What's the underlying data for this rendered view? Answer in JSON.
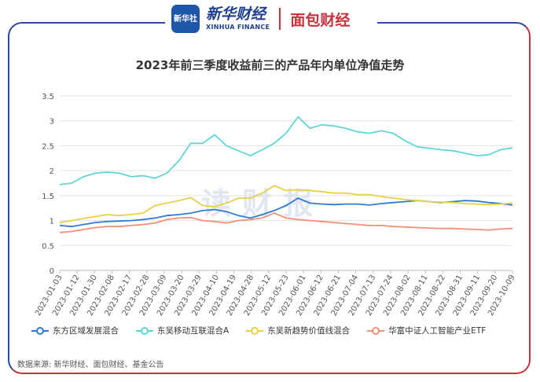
{
  "header": {
    "badge_text": "新华社",
    "brand_cn": "新华财经",
    "brand_en": "XINHUA FINANCE",
    "partner": "面包财经"
  },
  "watermark": "读财报",
  "chart_data": {
    "type": "line",
    "title": "2023年前三季度收益前三的产品年内单位净值走势",
    "xlabel": "",
    "ylabel": "",
    "ylim": [
      0,
      3.5
    ],
    "yticks": [
      "0",
      "0.5",
      "1",
      "1.5",
      "2",
      "2.5",
      "3",
      "3.5"
    ],
    "x_ticks": [
      "2023-01-03",
      "2023-01-12",
      "2023-01-30",
      "2023-02-08",
      "2023-02-17",
      "2023-02-28",
      "2023-03-09",
      "2023-03-20",
      "2023-03-29",
      "2023-04-10",
      "2023-04-19",
      "2023-04-28",
      "2023-05-12",
      "2023-05-23",
      "2023-06-01",
      "2023-06-12",
      "2023-06-21",
      "2023-07-04",
      "2023-07-13",
      "2023-07-24",
      "2023-08-02",
      "2023-08-11",
      "2023-08-22",
      "2023-08-31",
      "2023-09-11",
      "2023-09-20",
      "2023-10-09"
    ],
    "grid": true,
    "legend_position": "bottom",
    "series": [
      {
        "name": "东方区域发展混合",
        "color": "#2f7bd0",
        "values": [
          0.9,
          0.88,
          0.92,
          0.96,
          0.98,
          0.99,
          1.0,
          1.02,
          1.05,
          1.1,
          1.12,
          1.15,
          1.2,
          1.22,
          1.18,
          1.1,
          1.05,
          1.12,
          1.2,
          1.3,
          1.45,
          1.35,
          1.33,
          1.32,
          1.33,
          1.33,
          1.31,
          1.34,
          1.36,
          1.38,
          1.4,
          1.38,
          1.36,
          1.38,
          1.4,
          1.39,
          1.36,
          1.34,
          1.31
        ]
      },
      {
        "name": "东吴移动互联混合A",
        "color": "#5fd6d6",
        "values": [
          1.72,
          1.75,
          1.88,
          1.95,
          1.97,
          1.95,
          1.88,
          1.9,
          1.85,
          1.95,
          2.2,
          2.55,
          2.55,
          2.72,
          2.5,
          2.4,
          2.3,
          2.42,
          2.55,
          2.75,
          3.08,
          2.85,
          2.92,
          2.9,
          2.85,
          2.78,
          2.75,
          2.8,
          2.75,
          2.6,
          2.48,
          2.45,
          2.42,
          2.4,
          2.35,
          2.3,
          2.32,
          2.42,
          2.46
        ]
      },
      {
        "name": "东吴新趋势价值线混合",
        "color": "#e8d04a",
        "values": [
          0.96,
          1.0,
          1.04,
          1.08,
          1.12,
          1.1,
          1.12,
          1.15,
          1.3,
          1.35,
          1.4,
          1.46,
          1.3,
          1.28,
          1.35,
          1.45,
          1.45,
          1.55,
          1.7,
          1.6,
          1.62,
          1.6,
          1.58,
          1.55,
          1.55,
          1.52,
          1.52,
          1.48,
          1.45,
          1.42,
          1.4,
          1.38,
          1.37,
          1.36,
          1.34,
          1.33,
          1.32,
          1.33,
          1.35
        ]
      },
      {
        "name": "华富中证人工智能产业ETF",
        "color": "#f0907a",
        "values": [
          0.76,
          0.78,
          0.82,
          0.86,
          0.88,
          0.88,
          0.9,
          0.92,
          0.95,
          1.02,
          1.05,
          1.06,
          1.0,
          0.98,
          0.95,
          1.0,
          1.02,
          1.05,
          1.15,
          1.05,
          1.02,
          1.0,
          0.98,
          0.96,
          0.94,
          0.92,
          0.9,
          0.9,
          0.88,
          0.87,
          0.86,
          0.85,
          0.84,
          0.84,
          0.83,
          0.82,
          0.81,
          0.83,
          0.84
        ]
      }
    ]
  },
  "source": "数据来源: 新华财经、面包财经、基金公告"
}
